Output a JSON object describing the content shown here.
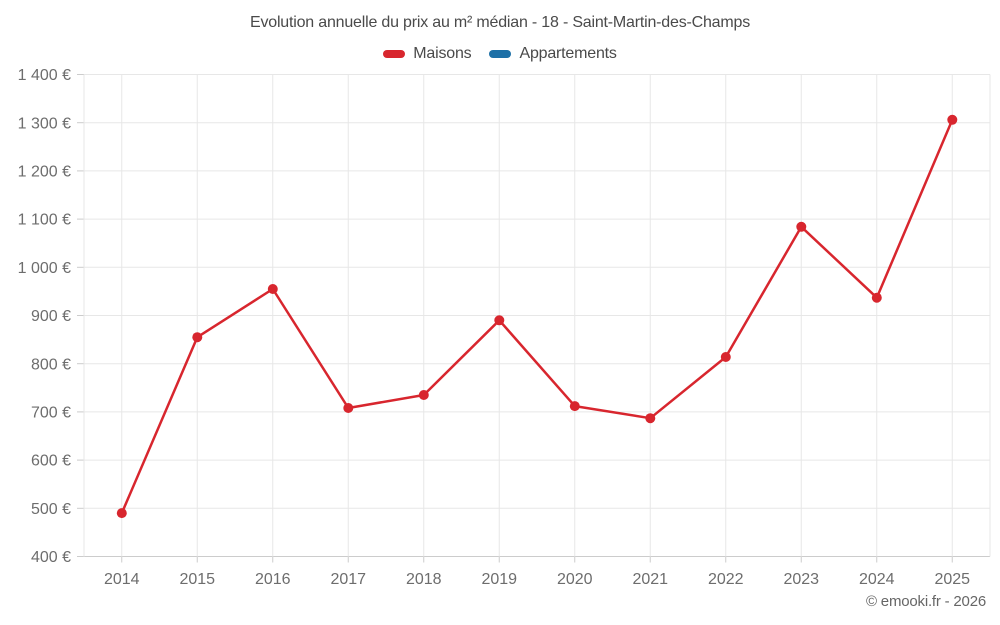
{
  "chart": {
    "title": "Evolution annuelle du prix au m² médian - 18 - Saint-Martin-des-Champs",
    "legend": [
      {
        "label": "Maisons",
        "color": "#d8262e"
      },
      {
        "label": "Appartements",
        "color": "#1d70a7"
      }
    ]
  },
  "chart_data": {
    "type": "line",
    "title": "Evolution annuelle du prix au m² médian - 18 - Saint-Martin-des-Champs",
    "categories": [
      "2014",
      "2015",
      "2016",
      "2017",
      "2018",
      "2019",
      "2020",
      "2021",
      "2022",
      "2023",
      "2024",
      "2025"
    ],
    "series": [
      {
        "name": "Maisons",
        "color": "#d8262e",
        "values": [
          490,
          855,
          955,
          708,
          735,
          890,
          712,
          687,
          814,
          1084,
          937,
          1306
        ]
      },
      {
        "name": "Appartements",
        "color": "#1d70a7",
        "values": []
      }
    ],
    "ylim": [
      400,
      1400
    ],
    "y_ticks": [
      400,
      500,
      600,
      700,
      800,
      900,
      1000,
      1100,
      1200,
      1300,
      1400
    ],
    "y_tick_labels": [
      "400 €",
      "500 €",
      "600 €",
      "700 €",
      "800 €",
      "900 €",
      "1 000 €",
      "1 100 €",
      "1 200 €",
      "1 300 €",
      "1 400 €"
    ],
    "xlabel": "",
    "ylabel": "",
    "unit": "€",
    "grid": true,
    "legend_position": "top",
    "colors": {
      "grid_line": "#e7e7e7",
      "axis_line": "#cccccc",
      "tick_mark": "#cccccc",
      "axis_text": "#6d6d6d",
      "title_text": "#4a4a4a"
    }
  },
  "footer": {
    "copyright": "© emooki.fr - 2026"
  }
}
